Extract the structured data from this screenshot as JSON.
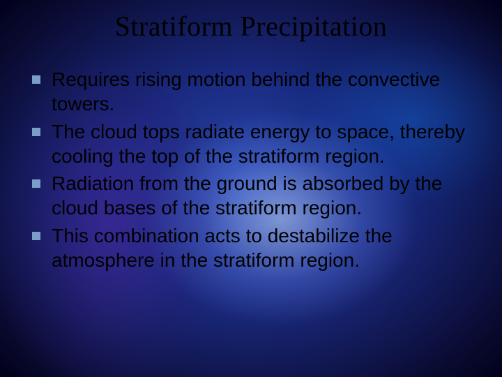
{
  "slide": {
    "title": "Stratiform Precipitation",
    "title_fontsize": 40,
    "title_color": "#000000",
    "bullet_fontsize": 28,
    "bullet_line_height": 1.26,
    "bullet_color": "#000000",
    "bullet_marker_color": "#7a9ec9",
    "background_colors": {
      "center_glow": "#c8dcff",
      "mid": "#2a4ab0",
      "dark": "#0a0a30",
      "violet": "#3c2896"
    },
    "bullets": [
      "Requires rising motion behind the convective towers.",
      "The cloud tops radiate energy to space, thereby cooling the top of the stratiform region.",
      "Radiation from the ground is absorbed by the cloud bases of the stratiform region.",
      "This combination acts to destabilize the atmosphere in the stratiform region."
    ]
  }
}
